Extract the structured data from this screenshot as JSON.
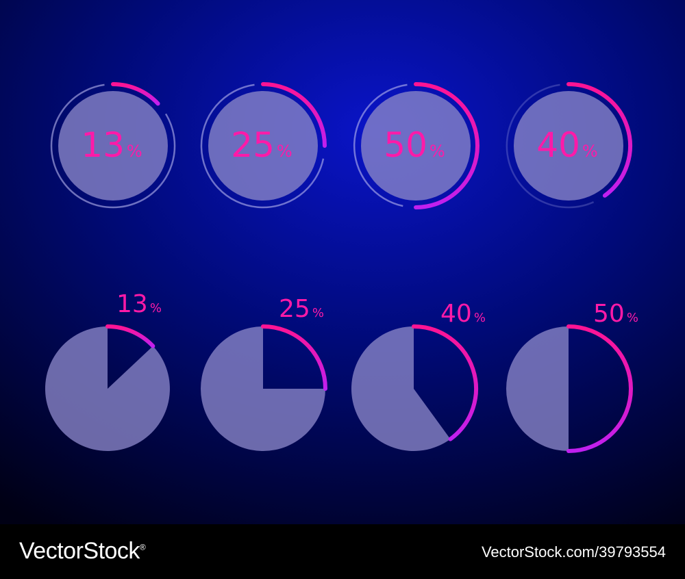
{
  "colors": {
    "bg_dark": "#000014",
    "bg_mid": "#000a78",
    "bg_glow": "#0a14c8",
    "disc_fill": "#8a86c8",
    "accent_start": "#ff1493",
    "accent_end": "#c020f0",
    "label_color": "#ff1aa8"
  },
  "chart_data": [
    {
      "type": "pie",
      "style": "progress-ring",
      "title": "",
      "values": [
        13,
        25,
        50,
        40
      ],
      "labels": [
        "13",
        "25",
        "50",
        "40"
      ],
      "unit": "%"
    },
    {
      "type": "pie",
      "style": "pie-with-arc",
      "title": "",
      "values": [
        13,
        25,
        40,
        50
      ],
      "labels": [
        "13",
        "25",
        "40",
        "50"
      ],
      "unit": "%"
    }
  ],
  "footer": {
    "brand": "VectorStock",
    "brand_mark": "®",
    "credit": "VectorStock.com/39793554"
  }
}
